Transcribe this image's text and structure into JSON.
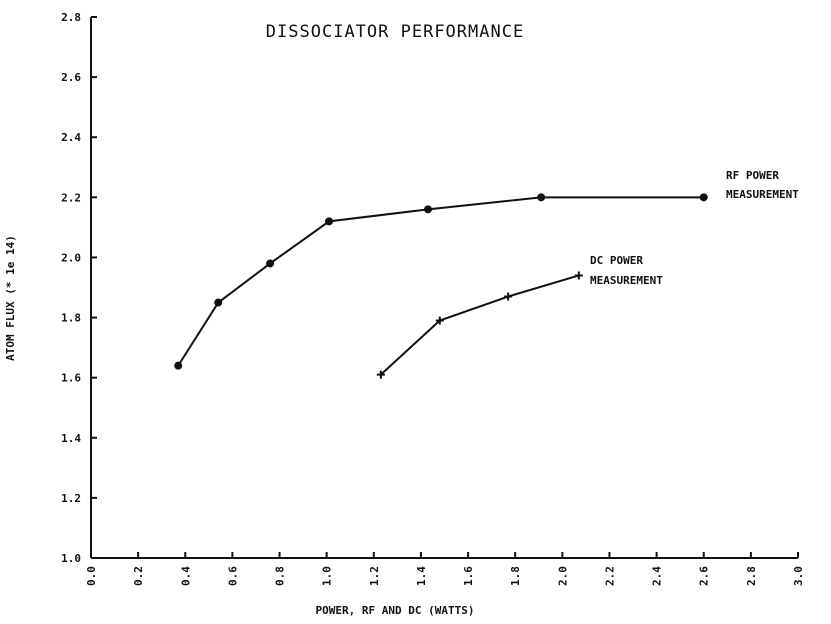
{
  "chart_data": {
    "type": "line",
    "title": "DISSOCIATOR PERFORMANCE",
    "xlabel": "POWER, RF AND DC  (WATTS)",
    "ylabel": "ATOM FLUX (* 1e 14)",
    "xlim": [
      0.0,
      3.0
    ],
    "ylim": [
      1.0,
      2.8
    ],
    "xticks": [
      "0.0",
      "0.2",
      "0.4",
      "0.6",
      "0.8",
      "1.0",
      "1.2",
      "1.4",
      "1.6",
      "1.8",
      "2.0",
      "2.2",
      "2.4",
      "2.6",
      "2.8",
      "3.0"
    ],
    "yticks": [
      "1.0",
      "1.2",
      "1.4",
      "1.6",
      "1.8",
      "2.0",
      "2.2",
      "2.4",
      "2.6",
      "2.8"
    ],
    "grid": false,
    "series": [
      {
        "name": "RF POWER MEASUREMENT",
        "label_lines": [
          "RF POWER",
          "MEASUREMENT"
        ],
        "marker": "circle",
        "x": [
          0.37,
          0.54,
          0.76,
          1.01,
          1.43,
          1.91,
          2.6
        ],
        "y": [
          1.64,
          1.85,
          1.98,
          2.12,
          2.16,
          2.2,
          2.2
        ]
      },
      {
        "name": "DC POWER MEASUREMENT",
        "label_lines": [
          "DC POWER",
          "MEASUREMENT"
        ],
        "marker": "plus",
        "x": [
          1.23,
          1.48,
          1.77,
          2.07
        ],
        "y": [
          1.61,
          1.79,
          1.87,
          1.94
        ]
      }
    ]
  }
}
